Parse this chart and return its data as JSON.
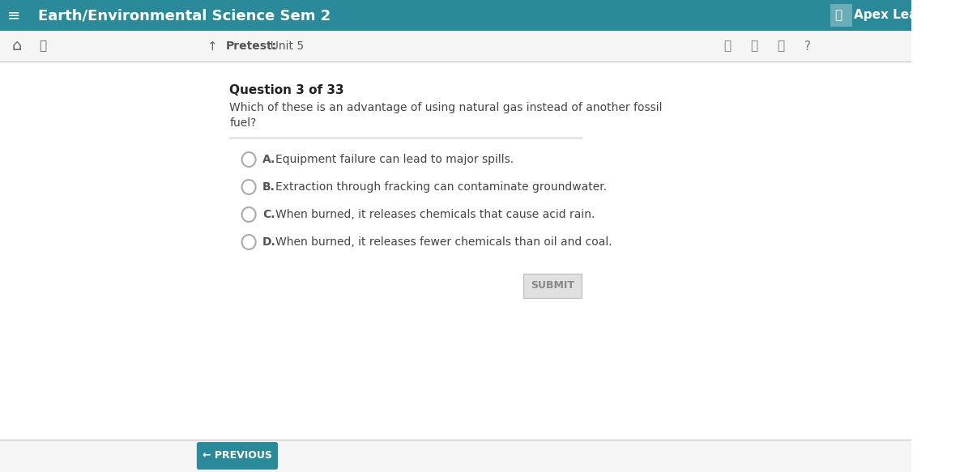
{
  "header_bg": "#2a8a99",
  "header_text": "Earth/Environmental Science Sem 2",
  "header_text_color": "#ffffff",
  "header_font_size": 13,
  "apex_text": "Apex Learning",
  "nav_bg": "#f5f5f5",
  "nav_text": "Pretest:  Unit 5",
  "body_bg": "#ffffff",
  "question_label": "Question 3 of 33",
  "question_text": "Which of these is an advantage of using natural gas instead of another fossil\nfuel?",
  "options": [
    {
      "letter": "A.",
      "text": "Equipment failure can lead to major spills."
    },
    {
      "letter": "B.",
      "text": "Extraction through fracking can contaminate groundwater."
    },
    {
      "letter": "C.",
      "text": "When burned, it releases chemicals that cause acid rain."
    },
    {
      "letter": "D.",
      "text": "When burned, it releases fewer chemicals than oil and coal."
    }
  ],
  "submit_btn_text": "SUBMIT",
  "submit_btn_bg": "#e0e0e0",
  "submit_btn_text_color": "#888888",
  "prev_btn_text": "← PREVIOUS",
  "prev_btn_bg": "#2a8a99",
  "prev_btn_text_color": "#ffffff",
  "radio_color": "#aaaaaa",
  "option_letter_color": "#555555",
  "option_text_color": "#444444",
  "divider_color": "#cccccc",
  "footer_bg": "#f5f5f5",
  "footer_divider_color": "#cccccc"
}
